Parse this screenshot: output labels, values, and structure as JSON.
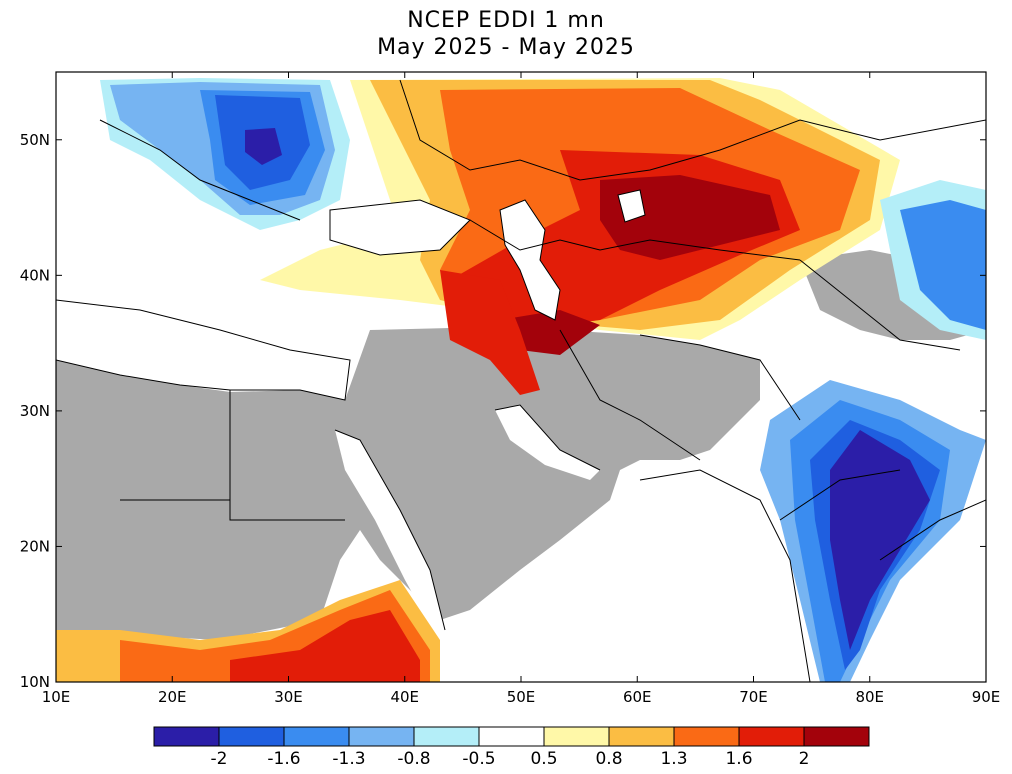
{
  "title": {
    "line1": "NCEP EDDI 1 mn",
    "line2": "May 2025 - May 2025"
  },
  "map": {
    "region": {
      "lon_min": 10,
      "lon_max": 90,
      "lat_min": 10,
      "lat_max": 55
    },
    "lat_ticks": [
      {
        "value": 10,
        "label": "10N"
      },
      {
        "value": 20,
        "label": "20N"
      },
      {
        "value": 30,
        "label": "30N"
      },
      {
        "value": 40,
        "label": "40N"
      },
      {
        "value": 50,
        "label": "50N"
      }
    ],
    "lon_ticks": [
      {
        "value": 10,
        "label": "10E"
      },
      {
        "value": 20,
        "label": "20E"
      },
      {
        "value": 30,
        "label": "30E"
      },
      {
        "value": 40,
        "label": "40E"
      },
      {
        "value": 50,
        "label": "50E"
      },
      {
        "value": 60,
        "label": "60E"
      },
      {
        "value": 70,
        "label": "70E"
      },
      {
        "value": 80,
        "label": "80E"
      },
      {
        "value": 90,
        "label": "90E"
      }
    ],
    "no_data_color": "#a9a9a9",
    "ocean_color": "#ffffff"
  },
  "colorbar": {
    "colors": [
      "#2b1ea8",
      "#1f5fe0",
      "#3a8cf0",
      "#76b4f2",
      "#b4eef8",
      "#ffffff",
      "#fff8a8",
      "#fbbd43",
      "#fa6a15",
      "#e21d08",
      "#a3020b"
    ],
    "labels": [
      "-2",
      "-1.6",
      "-1.3",
      "-0.8",
      "-0.5",
      "0.5",
      "0.8",
      "1.3",
      "1.6",
      "2"
    ]
  }
}
